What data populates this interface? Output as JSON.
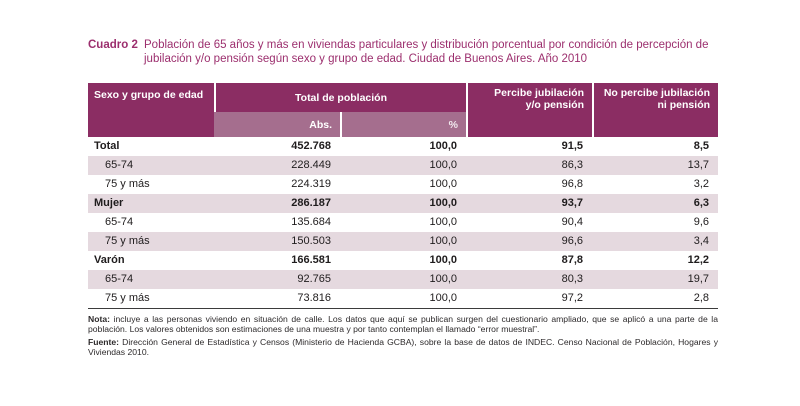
{
  "title": {
    "label": "Cuadro 2",
    "text": "Población de 65 años y más en viviendas particulares y distribución porcentual por condición de percepción de jubilación y/o pensión según sexo y grupo de edad. Ciudad de Buenos Aires. Año 2010"
  },
  "table": {
    "headers": {
      "col_sexo": "Sexo y grupo de edad",
      "col_total": "Total de población",
      "sub_abs": "Abs.",
      "sub_pct": "%",
      "col_percibe": {
        "line1": "Percibe jubilación",
        "line2": "y/o pensión"
      },
      "col_no_percibe": {
        "line1": "No percibe jubilación",
        "line2": "ni pensión"
      }
    },
    "rows": [
      {
        "label": "Total",
        "abs": "452.768",
        "pct": "100,0",
        "percibe": "91,5",
        "no_percibe": "8,5"
      },
      {
        "label": "65-74",
        "abs": "228.449",
        "pct": "100,0",
        "percibe": "86,3",
        "no_percibe": "13,7"
      },
      {
        "label": "75 y más",
        "abs": "224.319",
        "pct": "100,0",
        "percibe": "96,8",
        "no_percibe": "3,2"
      },
      {
        "label": "Mujer",
        "abs": "286.187",
        "pct": "100,0",
        "percibe": "93,7",
        "no_percibe": "6,3"
      },
      {
        "label": "65-74",
        "abs": "135.684",
        "pct": "100,0",
        "percibe": "90,4",
        "no_percibe": "9,6"
      },
      {
        "label": "75 y más",
        "abs": "150.503",
        "pct": "100,0",
        "percibe": "96,6",
        "no_percibe": "3,4"
      },
      {
        "label": "Varón",
        "abs": "166.581",
        "pct": "100,0",
        "percibe": "87,8",
        "no_percibe": "12,2"
      },
      {
        "label": "65-74",
        "abs": "92.765",
        "pct": "100,0",
        "percibe": "80,3",
        "no_percibe": "19,7"
      },
      {
        "label": "75 y más",
        "abs": "73.816",
        "pct": "100,0",
        "percibe": "97,2",
        "no_percibe": "2,8"
      }
    ]
  },
  "notes": {
    "nota_label": "Nota:",
    "nota_text": " incluye a las personas viviendo en situación de calle. Los datos que aquí se publican surgen del cuestionario ampliado, que se aplicó a una parte de la población. Los valores obtenidos son estimaciones de una muestra y por tanto contemplan el llamado “error muestral”.",
    "fuente_label": "Fuente:",
    "fuente_text": " Dirección General de Estadística y Censos (Ministerio de Hacienda GCBA), sobre la base de datos de INDEC. Censo Nacional de Población, Hogares y Viviendas 2010."
  },
  "colors": {
    "header_dark": "#8b2d63",
    "header_light": "#a56e8e",
    "row_stripe": "#e5d9df",
    "title_accent": "#9c2f6e",
    "body_text": "#1f1c1d",
    "note_text": "#2d2a2b",
    "rule_dark": "#3b3b3b"
  }
}
